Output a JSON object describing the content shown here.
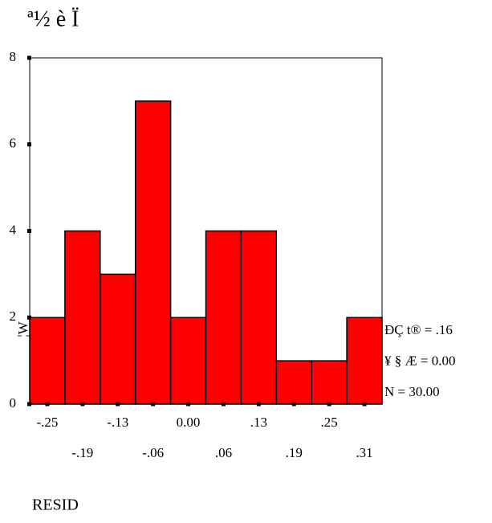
{
  "chart_data": {
    "type": "histogram",
    "title": "ª½ è Ï",
    "bins": [
      -0.28125,
      -0.21875,
      -0.15625,
      -0.09375,
      -0.03125,
      0.03125,
      0.09375,
      0.15625,
      0.21875,
      0.28125,
      0.34375
    ],
    "values": [
      2,
      4,
      3,
      7,
      2,
      4,
      4,
      1,
      1,
      2
    ],
    "color": "#ff0000",
    "xlim": [
      -0.28125,
      0.34375
    ],
    "ylim": [
      0,
      8
    ],
    "xticks": [
      {
        "value": -0.25,
        "label": "-.25"
      },
      {
        "value": -0.1875,
        "label": "-.19"
      },
      {
        "value": -0.125,
        "label": "-.13"
      },
      {
        "value": -0.0625,
        "label": "-.06"
      },
      {
        "value": 0,
        "label": "0.00"
      },
      {
        "value": 0.0625,
        "label": ".06"
      },
      {
        "value": 0.125,
        "label": ".13"
      },
      {
        "value": 0.1875,
        "label": ".19"
      },
      {
        "value": 0.25,
        "label": ".25"
      },
      {
        "value": 0.3125,
        "label": ".31"
      }
    ],
    "yticks": [
      0,
      2,
      4,
      6,
      8
    ],
    "xlabel": "RESID",
    "ylabel": "¦W",
    "annotations": [
      "Ð­Ç t® = .16",
      "¥ § Æ = 0.00",
      "N = 30.00"
    ]
  }
}
